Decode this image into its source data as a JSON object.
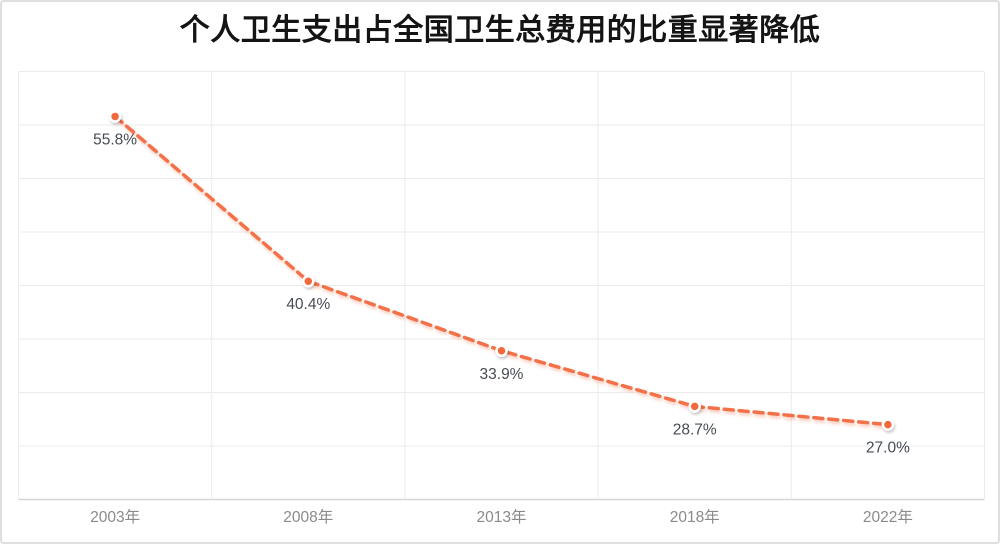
{
  "title": "个人卫生支出占全国卫生总费用的比重显著降低",
  "colors": {
    "background": "#ffffff",
    "card_border": "#dfdfdf",
    "title_color": "#141414",
    "line": "#f3714a",
    "line_shadow": "#f3714a",
    "marker_fill": "#f2673d",
    "marker_stroke": "#ffffff",
    "grid": "#ebebeb",
    "axis_line": "#d6d6d6",
    "data_label": "#474c55",
    "tick_label": "#8a8a8a"
  },
  "chart_data": {
    "type": "line",
    "line_style": "dashed",
    "title": "个人卫生支出占全国卫生总费用的比重显著降低",
    "categories": [
      "2003年",
      "2008年",
      "2013年",
      "2018年",
      "2022年"
    ],
    "values": [
      55.8,
      40.4,
      33.9,
      28.7,
      27.0
    ],
    "data_labels": [
      "55.8%",
      "40.4%",
      "33.9%",
      "28.7%",
      "27.0%"
    ],
    "xlabel": "",
    "ylabel": "",
    "ylim": [
      20,
      60
    ],
    "y_gridline_interval": 5,
    "grid": "on",
    "legend": "none",
    "y_axis_tick_labels_visible": false,
    "data_label_position": "below-point"
  }
}
